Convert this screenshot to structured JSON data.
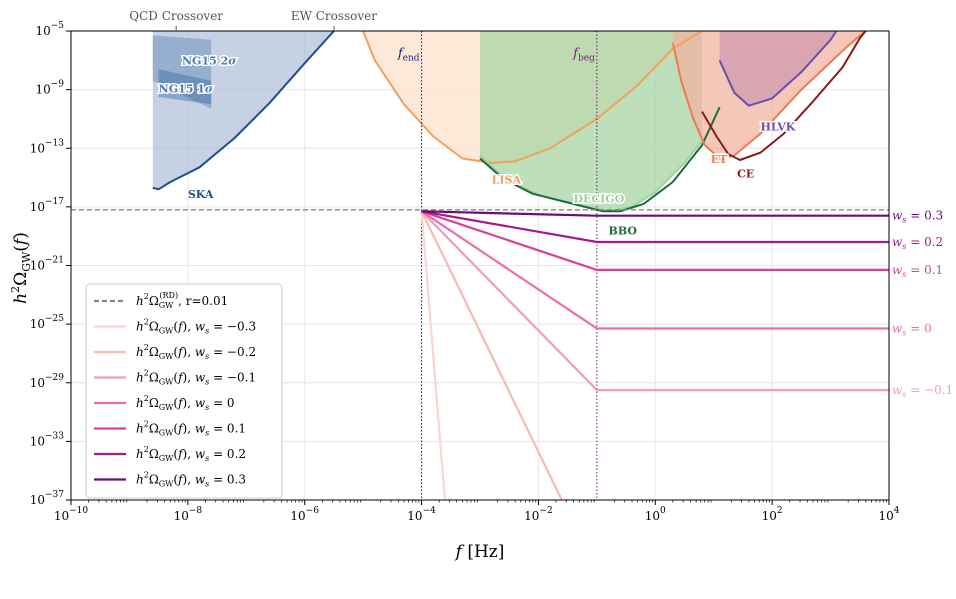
{
  "chart_data": {
    "type": "line",
    "xlabel": "f [Hz]",
    "ylabel": "h²Ω_GW(f)",
    "xscale": "log",
    "yscale": "log",
    "xlim_log10": [
      -10,
      4
    ],
    "ylim_log10": [
      -37,
      -5
    ],
    "x_ticks": [
      -10,
      -8,
      -6,
      -4,
      -2,
      0,
      2,
      4
    ],
    "y_ticks": [
      -37,
      -33,
      -29,
      -25,
      -21,
      -17,
      -13,
      -9,
      -5
    ],
    "grid": true,
    "legend_position": "lower-left",
    "top_markers": [
      {
        "label": "QCD Crossover",
        "log10_f": -8.2
      },
      {
        "label": "EW Crossover",
        "log10_f": -5.5
      }
    ],
    "vlines": [
      {
        "label": "f_end",
        "sym": "f",
        "sub": "end",
        "log10_f": -4,
        "color": "#1a1a8c"
      },
      {
        "label": "f_beg",
        "sym": "f",
        "sub": "beg",
        "log10_f": -1,
        "color": "#7a1a7a"
      }
    ],
    "reference_line": {
      "label": "h²Ω_GW^(RD), r=0.01",
      "log10_h2omega": -17.2,
      "color": "#888888"
    },
    "plateau_low_freq": [
      {
        "log10_f": -10,
        "log10_h2omega": -16.9
      },
      {
        "log10_f": -8.2,
        "log10_h2omega": -16.95
      },
      {
        "log10_f": -8.1,
        "log10_h2omega": -17.2
      },
      {
        "log10_f": -4,
        "log10_h2omega": -17.3
      }
    ],
    "series": [
      {
        "name": "h²Ω_GW(f), w_s=−0.3",
        "ws": "−0.3",
        "color": "#fcd5d0",
        "end_label": "",
        "points": [
          [
            -4,
            -17.3
          ],
          [
            -3.6,
            -37
          ]
        ]
      },
      {
        "name": "h²Ω_GW(f), w_s=−0.2",
        "ws": "−0.2",
        "color": "#f8b9b4",
        "end_label": "",
        "points": [
          [
            -4,
            -17.3
          ],
          [
            -1.6,
            -37
          ]
        ]
      },
      {
        "name": "h²Ω_GW(f), w_s=−0.1",
        "ws": "−0.1",
        "color": "#f49cb4",
        "end_label": "w_s = −0.1",
        "points": [
          [
            -4,
            -17.3
          ],
          [
            -1,
            -29.5
          ],
          [
            4,
            -29.5
          ]
        ]
      },
      {
        "name": "h²Ω_GW(f), w_s=0",
        "ws": "0",
        "color": "#ea6fa6",
        "end_label": "w_s = 0",
        "points": [
          [
            -4,
            -17.3
          ],
          [
            -1,
            -25.3
          ],
          [
            4,
            -25.3
          ]
        ]
      },
      {
        "name": "h²Ω_GW(f), w_s=0.1",
        "ws": "0.1",
        "color": "#d9409a",
        "end_label": "w_s = 0.1",
        "points": [
          [
            -4,
            -17.3
          ],
          [
            -1,
            -21.3
          ],
          [
            4,
            -21.3
          ]
        ]
      },
      {
        "name": "h²Ω_GW(f), w_s=0.2",
        "ws": "0.2",
        "color": "#a21a8c",
        "end_label": "w_s = 0.2",
        "points": [
          [
            -4,
            -17.3
          ],
          [
            -1,
            -19.4
          ],
          [
            4,
            -19.4
          ]
        ]
      },
      {
        "name": "h²Ω_GW(f), w_s=0.3",
        "ws": "0.3",
        "color": "#6a0c7a",
        "end_label": "w_s = 0.3",
        "points": [
          [
            -4,
            -17.3
          ],
          [
            -1,
            -17.6
          ],
          [
            4,
            -17.6
          ]
        ]
      }
    ],
    "sensitivity_curves": [
      {
        "name": "SKA",
        "color": "#1f4e8c",
        "fill": "#aebfd8",
        "points": [
          [
            -8.6,
            -15.7
          ],
          [
            -8.5,
            -15.8
          ],
          [
            -8.3,
            -15.3
          ],
          [
            -7.8,
            -14.3
          ],
          [
            -7.2,
            -12.3
          ],
          [
            -6.6,
            -9.9
          ],
          [
            -6.0,
            -7.2
          ],
          [
            -5.5,
            -5
          ]
        ]
      },
      {
        "name": "LISA",
        "color": "#f0a060",
        "fill": "#fde2cc",
        "points": [
          [
            -5.0,
            -5
          ],
          [
            -4.8,
            -7.0
          ],
          [
            -4.3,
            -10.0
          ],
          [
            -3.8,
            -12.2
          ],
          [
            -3.3,
            -13.7
          ],
          [
            -2.8,
            -14.0
          ],
          [
            -2.4,
            -13.9
          ],
          [
            -1.8,
            -13.0
          ],
          [
            -1.0,
            -11.0
          ],
          [
            -0.3,
            -8.7
          ],
          [
            0.3,
            -6.2
          ],
          [
            0.8,
            -5
          ]
        ]
      },
      {
        "name": "DECIGO",
        "color": "#9ed09e",
        "fill": "#a7d4a3",
        "points": [
          [
            -3.0,
            -13.5
          ],
          [
            -2.6,
            -15.0
          ],
          [
            -2.0,
            -16.2
          ],
          [
            -1.3,
            -16.9
          ],
          [
            -0.8,
            -17.3
          ],
          [
            -0.4,
            -17.0
          ],
          [
            0.0,
            -16.0
          ],
          [
            0.5,
            -14.0
          ],
          [
            0.8,
            -12.5
          ]
        ]
      },
      {
        "name": "BBO",
        "color": "#1e6b3a",
        "fill": "none",
        "points": [
          [
            -3.0,
            -13.7
          ],
          [
            -2.6,
            -15.1
          ],
          [
            -2.1,
            -16.1
          ],
          [
            -1.3,
            -16.9
          ],
          [
            -0.9,
            -17.3
          ],
          [
            -0.6,
            -17.3
          ],
          [
            -0.2,
            -16.8
          ],
          [
            0.3,
            -15.3
          ],
          [
            0.8,
            -12.8
          ],
          [
            1.1,
            -10.2
          ]
        ]
      },
      {
        "name": "ET",
        "color": "#f07a50",
        "fill": "#f2b4a0",
        "points": [
          [
            0.3,
            -5.8
          ],
          [
            0.45,
            -8.5
          ],
          [
            0.65,
            -11.0
          ],
          [
            0.85,
            -12.8
          ],
          [
            1.1,
            -13.7
          ],
          [
            1.35,
            -13.5
          ],
          [
            1.8,
            -12.0
          ],
          [
            2.5,
            -9.0
          ],
          [
            3.3,
            -6.0
          ],
          [
            3.6,
            -5
          ]
        ]
      },
      {
        "name": "CE",
        "color": "#8b1a1a",
        "fill": "none",
        "points": [
          [
            0.8,
            -10.5
          ],
          [
            1.05,
            -12.2
          ],
          [
            1.25,
            -13.4
          ],
          [
            1.45,
            -13.8
          ],
          [
            1.8,
            -13.3
          ],
          [
            2.2,
            -12.0
          ],
          [
            2.7,
            -9.8
          ],
          [
            3.2,
            -7.5
          ],
          [
            3.5,
            -5.5
          ],
          [
            3.6,
            -5
          ]
        ]
      },
      {
        "name": "HLVK",
        "color": "#6a4fa8",
        "fill": "#cf9ab2",
        "points": [
          [
            1.1,
            -7.0
          ],
          [
            1.35,
            -9.2
          ],
          [
            1.6,
            -10.1
          ],
          [
            2.0,
            -9.6
          ],
          [
            2.5,
            -7.8
          ],
          [
            3.0,
            -5.6
          ],
          [
            3.1,
            -5
          ]
        ]
      }
    ],
    "ng15_bands": [
      {
        "label": "NG15 2σ",
        "sym": "NG15 2",
        "greek": "σ",
        "color": "#5b86b5",
        "polygon": [
          [
            -8.6,
            -8.4
          ],
          [
            -8.6,
            -5.3
          ],
          [
            -7.6,
            -5.6
          ],
          [
            -7.6,
            -10.3
          ]
        ]
      },
      {
        "label": "NG15 1σ",
        "sym": "NG15 1",
        "greek": "σ",
        "color": "#3a6ea5",
        "polygon": [
          [
            -8.5,
            -9.5
          ],
          [
            -8.5,
            -7.6
          ],
          [
            -7.6,
            -8.4
          ],
          [
            -7.6,
            -10.0
          ]
        ]
      }
    ],
    "legend": [
      {
        "type": "dashed",
        "label": "h²Ω_GW^(RD), r=0.01",
        "color": "#888888"
      },
      {
        "type": "solid",
        "label": "h²Ω_GW(f), w_s = −0.3",
        "color": "#fcd5d0"
      },
      {
        "type": "solid",
        "label": "h²Ω_GW(f), w_s = −0.2",
        "color": "#f8b9b4"
      },
      {
        "type": "solid",
        "label": "h²Ω_GW(f), w_s = −0.1",
        "color": "#f49cb4"
      },
      {
        "type": "solid",
        "label": "h²Ω_GW(f), w_s = 0",
        "color": "#ea6fa6"
      },
      {
        "type": "solid",
        "label": "h²Ω_GW(f), w_s = 0.1",
        "color": "#d9409a"
      },
      {
        "type": "solid",
        "label": "h²Ω_GW(f), w_s = 0.2",
        "color": "#a21a8c"
      },
      {
        "type": "solid",
        "label": "h²Ω_GW(f), w_s = 0.3",
        "color": "#6a0c7a"
      }
    ],
    "tick_base": "10"
  }
}
